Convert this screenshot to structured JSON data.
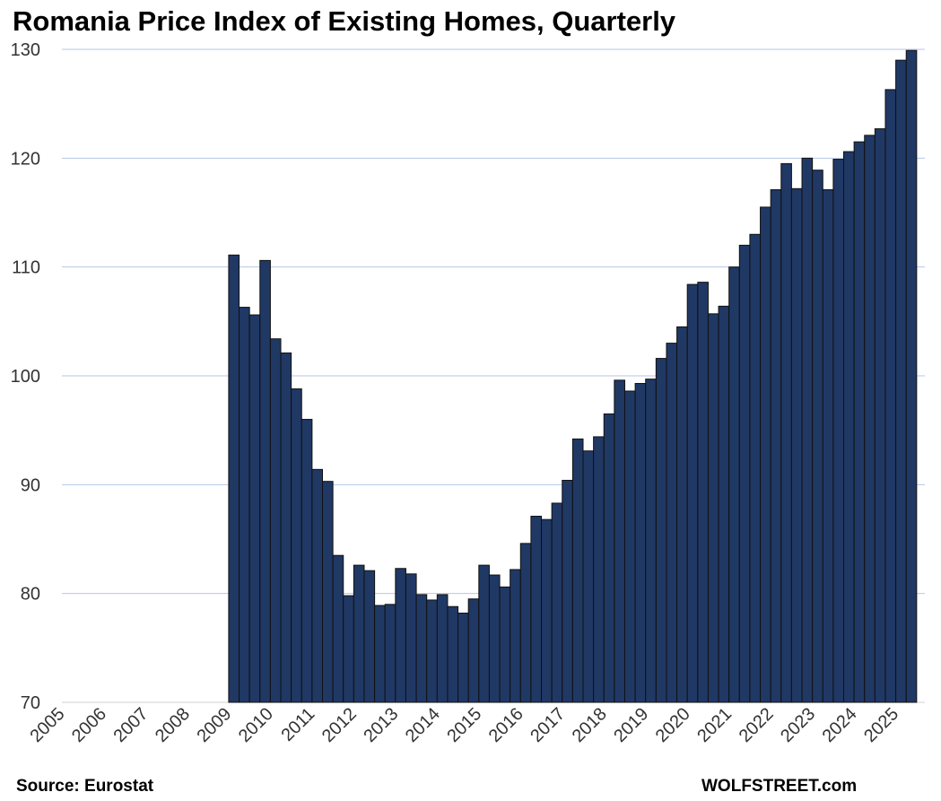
{
  "chart_data": {
    "type": "bar",
    "title": "Romania Price Index of Existing Homes, Quarterly",
    "xlabel": "",
    "ylabel": "",
    "ylim": [
      70,
      130
    ],
    "yticks": [
      70,
      80,
      90,
      100,
      110,
      120,
      130
    ],
    "grid": true,
    "x_start": "2005 Q1",
    "data_start": "2009 Q1",
    "frequency": "quarterly",
    "xticks": [
      "2005",
      "2006",
      "2007",
      "2008",
      "2009",
      "2010",
      "2011",
      "2012",
      "2013",
      "2014",
      "2015",
      "2016",
      "2017",
      "2018",
      "2019",
      "2020",
      "2021",
      "2022",
      "2023",
      "2024",
      "2025"
    ],
    "values": [
      111.1,
      106.3,
      105.6,
      110.6,
      103.4,
      102.1,
      98.8,
      96.0,
      91.4,
      90.3,
      83.5,
      79.8,
      82.6,
      82.1,
      78.9,
      79.0,
      82.3,
      81.8,
      79.9,
      79.4,
      79.9,
      78.8,
      78.2,
      79.5,
      82.6,
      81.7,
      80.6,
      82.2,
      84.6,
      87.1,
      86.8,
      88.3,
      90.4,
      94.2,
      93.1,
      94.4,
      96.5,
      99.6,
      98.6,
      99.3,
      99.7,
      101.6,
      103.0,
      104.5,
      108.4,
      108.6,
      105.7,
      106.4,
      110.0,
      112.0,
      113.0,
      115.5,
      117.1,
      119.5,
      117.2,
      120.0,
      118.9,
      117.1,
      119.9,
      120.6,
      121.5,
      122.1,
      122.7,
      126.3,
      129.0,
      129.9
    ],
    "bar_color": "#203864",
    "grid_color": "#b4c7e7"
  },
  "footer": {
    "source": "Source: Eurostat",
    "brand": "WOLFSTREET.com"
  }
}
